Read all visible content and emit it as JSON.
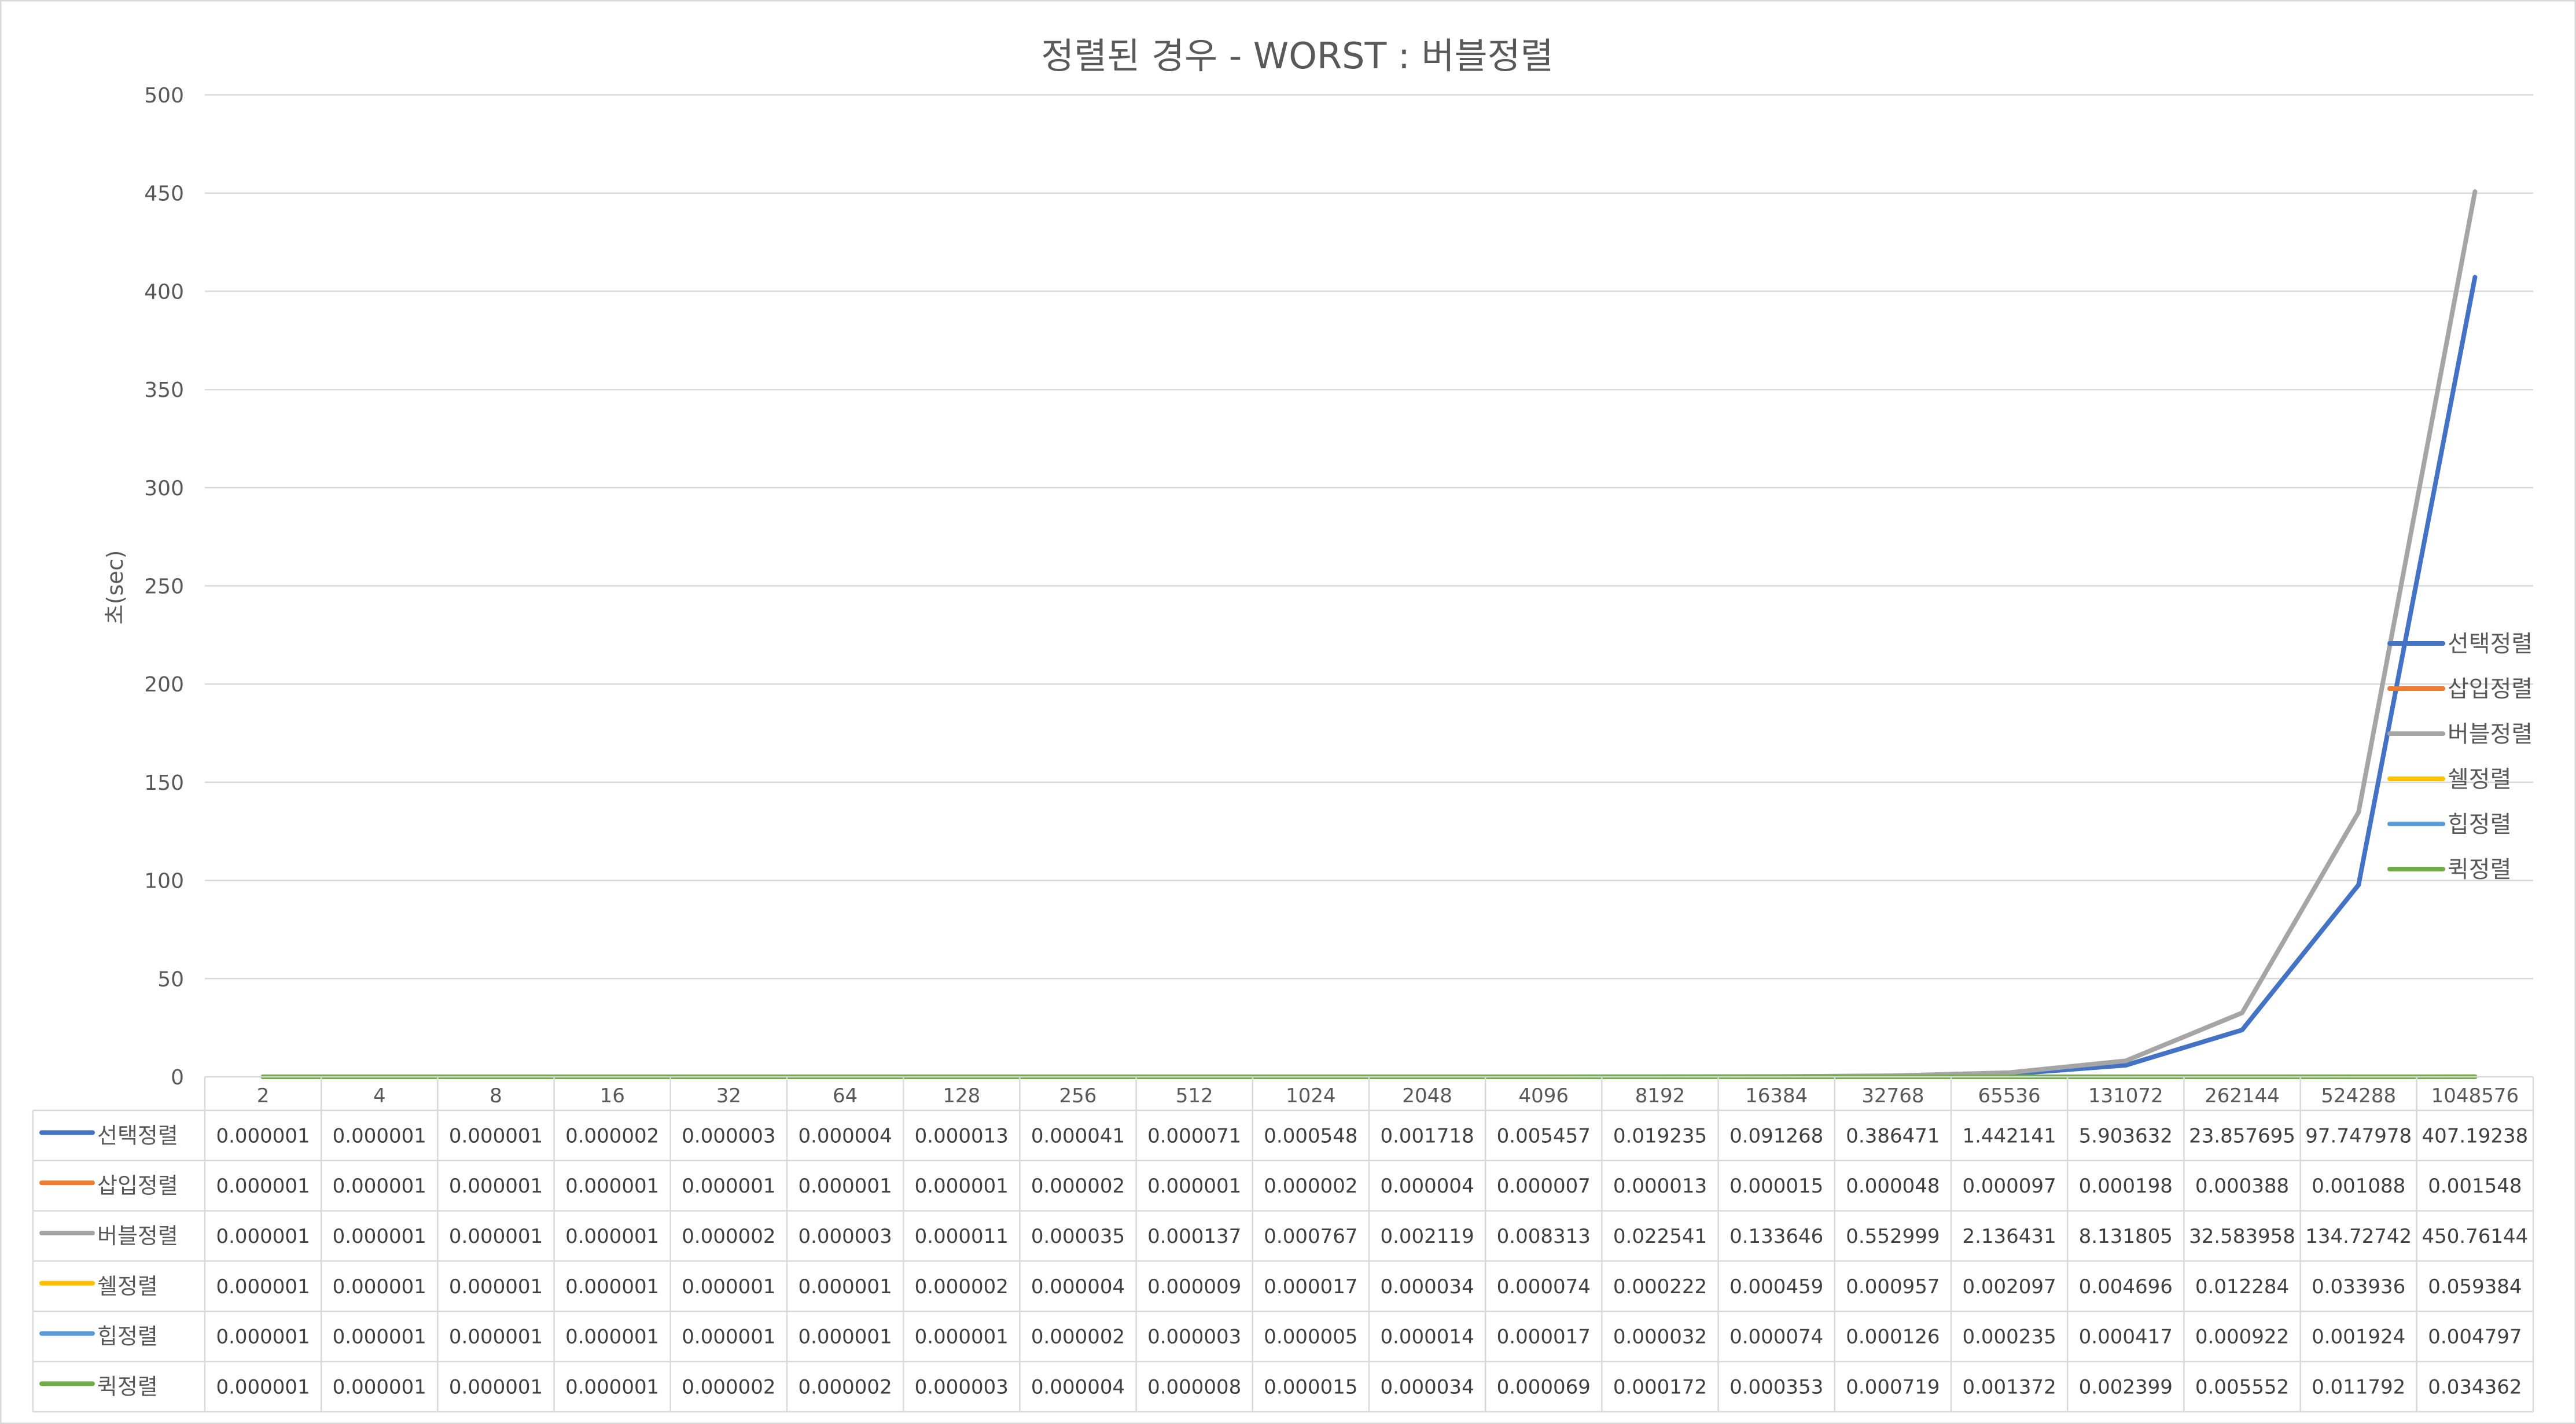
{
  "chart_data": {
    "type": "line",
    "title": "정렬된 경우 - WORST : 버블정렬",
    "ylabel": "초(sec)",
    "xlabel": "",
    "ylim": [
      0,
      500
    ],
    "yticks": [
      0,
      50,
      100,
      150,
      200,
      250,
      300,
      350,
      400,
      450,
      500
    ],
    "grid": true,
    "legend_position": "right",
    "data_table": true,
    "categories": [
      "2",
      "4",
      "8",
      "16",
      "32",
      "64",
      "128",
      "256",
      "512",
      "1024",
      "2048",
      "4096",
      "8192",
      "16384",
      "32768",
      "65536",
      "131072",
      "262144",
      "524288",
      "1048576"
    ],
    "series": [
      {
        "name": "선택정렬",
        "color": "#4472c4",
        "values": [
          "0.000001",
          "0.000001",
          "0.000001",
          "0.000002",
          "0.000003",
          "0.000004",
          "0.000013",
          "0.000041",
          "0.000071",
          "0.000548",
          "0.001718",
          "0.005457",
          "0.019235",
          "0.091268",
          "0.386471",
          "1.442141",
          "5.903632",
          "23.857695",
          "97.747978",
          "407.19238"
        ]
      },
      {
        "name": "삽입정렬",
        "color": "#ed7d31",
        "values": [
          "0.000001",
          "0.000001",
          "0.000001",
          "0.000001",
          "0.000001",
          "0.000001",
          "0.000001",
          "0.000002",
          "0.000001",
          "0.000002",
          "0.000004",
          "0.000007",
          "0.000013",
          "0.000015",
          "0.000048",
          "0.000097",
          "0.000198",
          "0.000388",
          "0.001088",
          "0.001548"
        ]
      },
      {
        "name": "버블정렬",
        "color": "#a5a5a5",
        "values": [
          "0.000001",
          "0.000001",
          "0.000001",
          "0.000001",
          "0.000002",
          "0.000003",
          "0.000011",
          "0.000035",
          "0.000137",
          "0.000767",
          "0.002119",
          "0.008313",
          "0.022541",
          "0.133646",
          "0.552999",
          "2.136431",
          "8.131805",
          "32.583958",
          "134.72742",
          "450.76144"
        ]
      },
      {
        "name": "쉘정렬",
        "color": "#ffc000",
        "values": [
          "0.000001",
          "0.000001",
          "0.000001",
          "0.000001",
          "0.000001",
          "0.000001",
          "0.000002",
          "0.000004",
          "0.000009",
          "0.000017",
          "0.000034",
          "0.000074",
          "0.000222",
          "0.000459",
          "0.000957",
          "0.002097",
          "0.004696",
          "0.012284",
          "0.033936",
          "0.059384"
        ]
      },
      {
        "name": "힙정렬",
        "color": "#5b9bd5",
        "values": [
          "0.000001",
          "0.000001",
          "0.000001",
          "0.000001",
          "0.000001",
          "0.000001",
          "0.000001",
          "0.000002",
          "0.000003",
          "0.000005",
          "0.000014",
          "0.000017",
          "0.000032",
          "0.000074",
          "0.000126",
          "0.000235",
          "0.000417",
          "0.000922",
          "0.001924",
          "0.004797"
        ]
      },
      {
        "name": "퀵정렬",
        "color": "#70ad47",
        "values": [
          "0.000001",
          "0.000001",
          "0.000001",
          "0.000001",
          "0.000002",
          "0.000002",
          "0.000003",
          "0.000004",
          "0.000008",
          "0.000015",
          "0.000034",
          "0.000069",
          "0.000172",
          "0.000353",
          "0.000719",
          "0.001372",
          "0.002399",
          "0.005552",
          "0.011792",
          "0.034362"
        ]
      }
    ]
  }
}
